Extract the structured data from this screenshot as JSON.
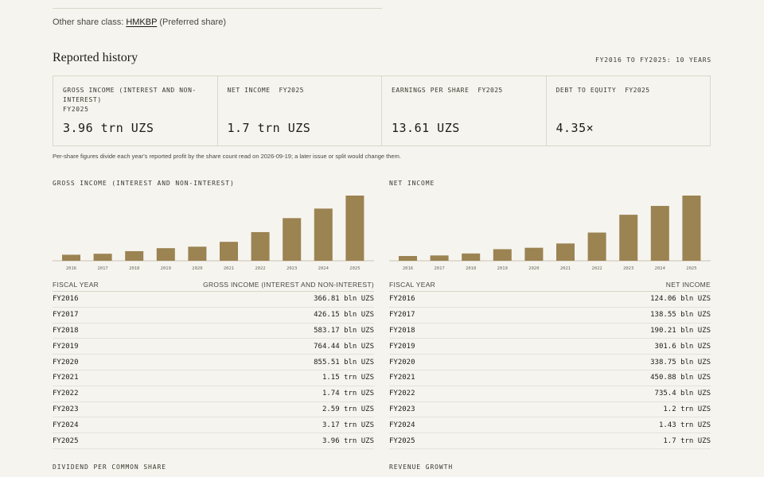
{
  "share_class": {
    "label": "Other share class:",
    "ticker": "HMKBP",
    "type": "(Preferred share)"
  },
  "section": {
    "title": "Reported history",
    "range": "FY2016 TO FY2025: 10 YEARS"
  },
  "cards": [
    {
      "label": "GROSS INCOME (INTEREST AND NON-INTEREST)",
      "fy": "FY2025",
      "value": "3.96 trn UZS"
    },
    {
      "label": "NET INCOME",
      "fy": "FY2025",
      "value": "1.7 trn UZS"
    },
    {
      "label": "EARNINGS PER SHARE",
      "fy": "FY2025",
      "value": "13.61 UZS"
    },
    {
      "label": "DEBT TO EQUITY",
      "fy": "FY2025",
      "value": "4.35×"
    }
  ],
  "note": "Per-share figures divide each year's reported profit by the share count read on 2026-09-19; a later issue or split would change them.",
  "colors": {
    "bar": "#9b8352",
    "axis": "#c9c4b7",
    "background": "#f6f4ee"
  },
  "chart_data": [
    {
      "type": "bar",
      "title": "GROSS INCOME (INTEREST AND NON-INTEREST)",
      "categories": [
        "2016",
        "2017",
        "2018",
        "2019",
        "2020",
        "2021",
        "2022",
        "2023",
        "2024",
        "2025"
      ],
      "values": [
        366.81,
        426.15,
        583.17,
        764.44,
        855.51,
        1150,
        1740,
        2590,
        3170,
        3960
      ],
      "unit": "bln UZS",
      "ylim": [
        0,
        3960
      ],
      "grid": false,
      "table": {
        "col1": "FISCAL YEAR",
        "col2": "GROSS INCOME (INTEREST AND NON-INTEREST)",
        "rows": [
          [
            "FY2016",
            "366.81 bln UZS"
          ],
          [
            "FY2017",
            "426.15 bln UZS"
          ],
          [
            "FY2018",
            "583.17 bln UZS"
          ],
          [
            "FY2019",
            "764.44 bln UZS"
          ],
          [
            "FY2020",
            "855.51 bln UZS"
          ],
          [
            "FY2021",
            "1.15 trn UZS"
          ],
          [
            "FY2022",
            "1.74 trn UZS"
          ],
          [
            "FY2023",
            "2.59 trn UZS"
          ],
          [
            "FY2024",
            "3.17 trn UZS"
          ],
          [
            "FY2025",
            "3.96 trn UZS"
          ]
        ]
      }
    },
    {
      "type": "bar",
      "title": "NET INCOME",
      "categories": [
        "2016",
        "2017",
        "2018",
        "2019",
        "2020",
        "2021",
        "2022",
        "2023",
        "2024",
        "2025"
      ],
      "values": [
        124.06,
        138.55,
        190.21,
        301.6,
        338.75,
        450.88,
        735.4,
        1200,
        1430,
        1700
      ],
      "unit": "bln UZS",
      "ylim": [
        0,
        1700
      ],
      "grid": false,
      "table": {
        "col1": "FISCAL YEAR",
        "col2": "NET INCOME",
        "rows": [
          [
            "FY2016",
            "124.06 bln UZS"
          ],
          [
            "FY2017",
            "138.55 bln UZS"
          ],
          [
            "FY2018",
            "190.21 bln UZS"
          ],
          [
            "FY2019",
            "301.6 bln UZS"
          ],
          [
            "FY2020",
            "338.75 bln UZS"
          ],
          [
            "FY2021",
            "450.88 bln UZS"
          ],
          [
            "FY2022",
            "735.4 bln UZS"
          ],
          [
            "FY2023",
            "1.2 trn UZS"
          ],
          [
            "FY2024",
            "1.43 trn UZS"
          ],
          [
            "FY2025",
            "1.7 trn UZS"
          ]
        ]
      }
    }
  ],
  "bottom": {
    "left_title": "DIVIDEND PER COMMON SHARE",
    "right_title": "REVENUE GROWTH"
  }
}
